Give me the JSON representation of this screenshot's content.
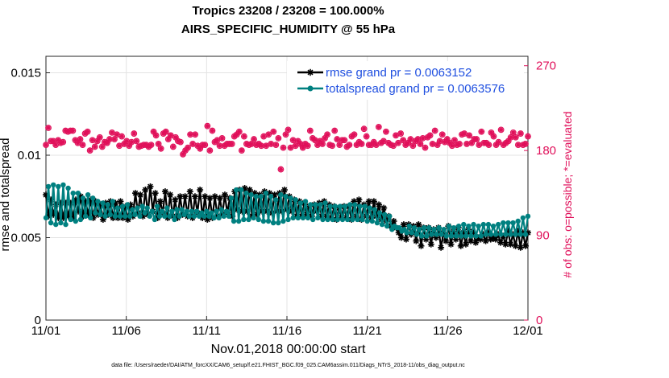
{
  "chart_data": {
    "type": "line",
    "title_line1": "Tropics 23208 / 23208 = 100.000%",
    "title_line2": "AIRS_SPECIFIC_HUMIDITY @ 55 hPa",
    "xlabel": "Nov.01,2018 00:00:00 start",
    "ylabel_left": "rmse and totalspread",
    "ylabel_right": "# of obs: o=possible; *=evaluated",
    "footer": "data file: /Users/raeder/DAI/ATM_forcXX/CAM6_setup/f.e21.FHIST_BGC.f09_025.CAM6assim.011/Diags_NTrS_2018-11/obs_diag_output.nc",
    "x_ticks": [
      {
        "label": "11/01",
        "day": 0
      },
      {
        "label": "11/06",
        "day": 5
      },
      {
        "label": "11/11",
        "day": 10
      },
      {
        "label": "11/16",
        "day": 15
      },
      {
        "label": "11/21",
        "day": 20
      },
      {
        "label": "11/26",
        "day": 25
      },
      {
        "label": "12/01",
        "day": 30
      }
    ],
    "y_ticks": [
      {
        "label": "0",
        "value": 0
      },
      {
        "label": "0.005",
        "value": 0.005
      },
      {
        "label": "0.01",
        "value": 0.01
      },
      {
        "label": "0.015",
        "value": 0.015
      }
    ],
    "y2_ticks": [
      {
        "label": "0",
        "value": 0
      },
      {
        "label": "90",
        "value": 90
      },
      {
        "label": "180",
        "value": 180
      },
      {
        "label": "270",
        "value": 270
      }
    ],
    "xlim": [
      0,
      30
    ],
    "ylim": [
      0,
      0.016
    ],
    "y2lim": [
      0,
      280
    ],
    "grid": true,
    "legend_position": "top-right",
    "series": [
      {
        "name": "rmse grand pr = 0.0063152",
        "color": "#000000",
        "marker": "asterisk",
        "y": [
          0.0076,
          0.0063,
          0.0073,
          0.0064,
          0.007,
          0.0062,
          0.0071,
          0.0062,
          0.0071,
          0.0063,
          0.0071,
          0.0062,
          0.0073,
          0.0066,
          0.0075,
          0.0063,
          0.0072,
          0.0064,
          0.0073,
          0.0062,
          0.0072,
          0.0064,
          0.007,
          0.0061,
          0.0071,
          0.0064,
          0.0072,
          0.0062,
          0.0071,
          0.0062,
          0.0072,
          0.0062,
          0.0069,
          0.0061,
          0.007,
          0.0063,
          0.0077,
          0.0065,
          0.0076,
          0.0063,
          0.0079,
          0.0064,
          0.0081,
          0.0066,
          0.0077,
          0.0062,
          0.0072,
          0.0065,
          0.0078,
          0.0062,
          0.0076,
          0.0063,
          0.0073,
          0.0062,
          0.0075,
          0.0064,
          0.0075,
          0.0063,
          0.0078,
          0.0062,
          0.0075,
          0.0065,
          0.0079,
          0.0062,
          0.0075,
          0.0061,
          0.0074,
          0.0062,
          0.0075,
          0.0063,
          0.0074,
          0.0064,
          0.0076,
          0.0065,
          0.0074,
          0.0063,
          0.0078,
          0.0067,
          0.0079,
          0.0066,
          0.008,
          0.0066,
          0.0079,
          0.0063,
          0.0077,
          0.0064,
          0.0076,
          0.0066,
          0.0078,
          0.0066,
          0.0077,
          0.0065,
          0.0076,
          0.0066,
          0.0077,
          0.0066,
          0.0079,
          0.0067,
          0.0075,
          0.0066,
          0.0073,
          0.0063,
          0.0072,
          0.0063,
          0.0071,
          0.0064,
          0.0069,
          0.0063,
          0.007,
          0.0066,
          0.0071,
          0.0063,
          0.0072,
          0.0063,
          0.007,
          0.0062,
          0.0069,
          0.0061,
          0.0068,
          0.0062,
          0.0069,
          0.0062,
          0.0069,
          0.0061,
          0.0072,
          0.0063,
          0.0073,
          0.0061,
          0.007,
          0.0063,
          0.0072,
          0.0062,
          0.0072,
          0.0063,
          0.007,
          0.0061,
          0.0068,
          0.006,
          0.0063,
          0.0057,
          0.006,
          0.0056,
          0.0053,
          0.005,
          0.0058,
          0.0049,
          0.0058,
          0.0052,
          0.0057,
          0.0048,
          0.0058,
          0.0045,
          0.0056,
          0.0049,
          0.0056,
          0.0046,
          0.0055,
          0.005,
          0.0056,
          0.0044,
          0.0053,
          0.0048,
          0.0057,
          0.0046,
          0.0054,
          0.0049,
          0.0056,
          0.0045,
          0.0053,
          0.0046,
          0.0055,
          0.0048,
          0.0053,
          0.0047,
          0.005,
          0.0049,
          0.0052,
          0.0048,
          0.0053,
          0.0049,
          0.005,
          0.0049,
          0.0052,
          0.0047,
          0.0051,
          0.0046,
          0.0054,
          0.0046,
          0.0052,
          0.0045,
          0.0054,
          0.0044,
          0.0053,
          0.0045,
          0.0053
        ]
      },
      {
        "name": "totalspread grand pr = 0.0063576",
        "color": "#008080",
        "marker": "dot",
        "y": [
          0.0062,
          0.0081,
          0.0059,
          0.0082,
          0.0058,
          0.0081,
          0.0059,
          0.0082,
          0.0058,
          0.008,
          0.0061,
          0.0077,
          0.006,
          0.0077,
          0.0061,
          0.0074,
          0.0063,
          0.0076,
          0.0062,
          0.0074,
          0.0065,
          0.0072,
          0.0064,
          0.0071,
          0.0063,
          0.007,
          0.0064,
          0.0072,
          0.0063,
          0.0068,
          0.0063,
          0.0069,
          0.0063,
          0.007,
          0.0063,
          0.0067,
          0.0064,
          0.0068,
          0.0063,
          0.0069,
          0.0065,
          0.0068,
          0.0063,
          0.0066,
          0.0061,
          0.0069,
          0.0063,
          0.0066,
          0.0063,
          0.0068,
          0.0063,
          0.0066,
          0.0061,
          0.0067,
          0.0063,
          0.0067,
          0.0064,
          0.0066,
          0.0063,
          0.0066,
          0.0063,
          0.0066,
          0.0063,
          0.0065,
          0.0063,
          0.0066,
          0.0063,
          0.0065,
          0.0062,
          0.0066,
          0.0062,
          0.0067,
          0.0063,
          0.0066,
          0.0063,
          0.0074,
          0.006,
          0.0079,
          0.006,
          0.0079,
          0.0061,
          0.0077,
          0.0061,
          0.0076,
          0.0062,
          0.0075,
          0.0061,
          0.0075,
          0.006,
          0.0077,
          0.006,
          0.0075,
          0.0059,
          0.0073,
          0.0059,
          0.0076,
          0.006,
          0.0075,
          0.0061,
          0.0074,
          0.0062,
          0.0073,
          0.0062,
          0.0071,
          0.0062,
          0.0072,
          0.0062,
          0.007,
          0.0061,
          0.007,
          0.0062,
          0.007,
          0.0061,
          0.0071,
          0.0061,
          0.0069,
          0.0061,
          0.0069,
          0.0061,
          0.0069,
          0.0061,
          0.0069,
          0.0061,
          0.007,
          0.0061,
          0.007,
          0.0061,
          0.0069,
          0.0061,
          0.0069,
          0.006,
          0.0068,
          0.006,
          0.0067,
          0.0059,
          0.0065,
          0.0058,
          0.0064,
          0.0057,
          0.0063,
          0.0055,
          0.0057,
          0.0056,
          0.0056,
          0.0054,
          0.0055,
          0.0053,
          0.0057,
          0.0053,
          0.0056,
          0.0052,
          0.0055,
          0.0051,
          0.0056,
          0.0051,
          0.0056,
          0.0052,
          0.0055,
          0.0052,
          0.0056,
          0.0052,
          0.0055,
          0.0051,
          0.0057,
          0.0051,
          0.0056,
          0.0051,
          0.0057,
          0.0051,
          0.0058,
          0.0051,
          0.0057,
          0.0051,
          0.0058,
          0.0051,
          0.0057,
          0.0051,
          0.0058,
          0.0052,
          0.0058,
          0.0052,
          0.0057,
          0.0052,
          0.0058,
          0.0052,
          0.0059,
          0.0052,
          0.0059,
          0.0052,
          0.0059,
          0.0052,
          0.006,
          0.0052,
          0.0062,
          0.0052,
          0.0063
        ]
      },
      {
        "name": "# of obs (possible / evaluated)",
        "axis": "right",
        "color": "#e0105a",
        "marker": "circle-star",
        "y": [
          186,
          204,
          190,
          190,
          186,
          191,
          188,
          189,
          201,
          200,
          201,
          201,
          191,
          188,
          192,
          186,
          198,
          200,
          180,
          191,
          184,
          190,
          194,
          184,
          189,
          188,
          192,
          199,
          192,
          197,
          185,
          195,
          187,
          190,
          185,
          189,
          198,
          190,
          184,
          185,
          186,
          186,
          184,
          186,
          200,
          196,
          187,
          182,
          198,
          200,
          192,
          196,
          184,
          194,
          190,
          189,
          176,
          180,
          183,
          197,
          187,
          197,
          185,
          182,
          186,
          186,
          206,
          180,
          201,
          189,
          191,
          185,
          193,
          185,
          187,
          187,
          187,
          195,
          197,
          200,
          180,
          195,
          187,
          186,
          187,
          192,
          186,
          187,
          185,
          195,
          185,
          197,
          187,
          200,
          186,
          193,
          160,
          183,
          197,
          202,
          183,
          191,
          185,
          190,
          187,
          183,
          187,
          185,
          201,
          193,
          191,
          186,
          190,
          187,
          193,
          197,
          186,
          185,
          201,
          192,
          186,
          191,
          191,
          184,
          186,
          195,
          197,
          186,
          189,
          187,
          203,
          195,
          186,
          186,
          189,
          186,
          205,
          188,
          190,
          200,
          188,
          186,
          185,
          196,
          188,
          198,
          191,
          186,
          188,
          192,
          185,
          190,
          192,
          187,
          193,
          183,
          194,
          196,
          187,
          201,
          186,
          190,
          197,
          189,
          192,
          188,
          185,
          191,
          186,
          187,
          197,
          198,
          187,
          196,
          188,
          192,
          192,
          186,
          200,
          188,
          188,
          186,
          199,
          195,
          186,
          189,
          202,
          186,
          188,
          190,
          194,
          199,
          194,
          186,
          198,
          186,
          187,
          195
        ]
      }
    ]
  }
}
